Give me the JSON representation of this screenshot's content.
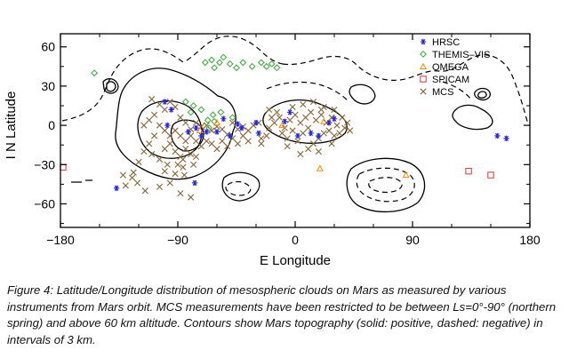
{
  "chart_data": {
    "type": "scatter",
    "title": "",
    "xlabel": "E Longitude",
    "ylabel": "I N Latitude",
    "xlim": [
      -180,
      180
    ],
    "ylim": [
      -78,
      70
    ],
    "xticks": [
      "−180",
      "−90",
      "0",
      "90",
      "180"
    ],
    "yticks": [
      "60",
      "30",
      "0",
      "−30",
      "−60"
    ],
    "xtick_values": [
      -180,
      -90,
      0,
      90,
      180
    ],
    "ytick_values": [
      60,
      30,
      0,
      -30,
      -60
    ],
    "grid": false,
    "legend_position": "top-right",
    "series": [
      {
        "name": "HRSC",
        "marker": "asterisk",
        "color": "#2222ee",
        "points": [
          [
            -137,
            -48
          ],
          [
            -100,
            18
          ],
          [
            -95,
            12
          ],
          [
            -98,
            0
          ],
          [
            -82,
            -5
          ],
          [
            -76,
            -2
          ],
          [
            -72,
            -8
          ],
          [
            -60,
            -5
          ],
          [
            -55,
            5
          ],
          [
            -50,
            -8
          ],
          [
            -44,
            1
          ],
          [
            -41,
            -2
          ],
          [
            -30,
            2
          ],
          [
            -8,
            3
          ],
          [
            -4,
            10
          ],
          [
            2,
            -8
          ],
          [
            12,
            -6
          ],
          [
            18,
            -8
          ],
          [
            26,
            2
          ],
          [
            30,
            5
          ],
          [
            155,
            -8
          ],
          [
            162,
            -10
          ],
          [
            -77,
            -44
          ],
          [
            -68,
            -5
          ],
          [
            -28,
            -6
          ]
        ]
      },
      {
        "name": "THEMIS–VIS",
        "marker": "diamond",
        "color": "#33aa33",
        "points": [
          [
            -154,
            40
          ],
          [
            -69,
            48
          ],
          [
            -64,
            50
          ],
          [
            -62,
            44
          ],
          [
            -58,
            48
          ],
          [
            -55,
            52
          ],
          [
            -50,
            47
          ],
          [
            -45,
            44
          ],
          [
            -40,
            48
          ],
          [
            -33,
            45
          ],
          [
            -26,
            48
          ],
          [
            -22,
            45
          ],
          [
            -18,
            47
          ],
          [
            -14,
            44
          ],
          [
            -84,
            18
          ],
          [
            -80,
            10
          ],
          [
            -78,
            15
          ],
          [
            -72,
            12
          ],
          [
            -67,
            4
          ],
          [
            -63,
            8
          ],
          [
            -57,
            10
          ],
          [
            -62,
            3
          ],
          [
            -66,
            -2
          ],
          [
            -48,
            6
          ]
        ]
      },
      {
        "name": "OMEGA",
        "marker": "triangle",
        "color": "#ff8800",
        "points": [
          [
            19,
            -33
          ],
          [
            85,
            -38
          ],
          [
            -73,
            -4
          ],
          [
            -60,
            2
          ],
          [
            22,
            3
          ],
          [
            -10,
            0
          ]
        ]
      },
      {
        "name": "SPICAM",
        "marker": "square",
        "color": "#dd3333",
        "points": [
          [
            -178,
            -32
          ],
          [
            133,
            -35
          ],
          [
            150,
            -38
          ]
        ]
      },
      {
        "name": "MCS",
        "marker": "cross",
        "color": "#886633",
        "points": [
          [
            -125,
            -40
          ],
          [
            -115,
            -50
          ],
          [
            -100,
            -35
          ],
          [
            -92,
            -37
          ],
          [
            -85,
            -38
          ],
          [
            -80,
            -55
          ],
          [
            -88,
            -52
          ],
          [
            -121,
            -44
          ],
          [
            -130,
            -46
          ],
          [
            -104,
            -47
          ],
          [
            -96,
            -44
          ],
          [
            -110,
            20
          ],
          [
            -104,
            16
          ],
          [
            -100,
            12
          ],
          [
            -96,
            18
          ],
          [
            -92,
            14
          ],
          [
            -88,
            6
          ],
          [
            -84,
            2
          ],
          [
            -80,
            -3
          ],
          [
            -76,
            2
          ],
          [
            -72,
            -1
          ],
          [
            -68,
            0
          ],
          [
            -64,
            -4
          ],
          [
            -60,
            -1
          ],
          [
            -56,
            -3
          ],
          [
            -52,
            -7
          ],
          [
            -48,
            2
          ],
          [
            -44,
            -3
          ],
          [
            -40,
            -1
          ],
          [
            -36,
            -4
          ],
          [
            -32,
            0
          ],
          [
            -28,
            2
          ],
          [
            -108,
            8
          ],
          [
            -112,
            4
          ],
          [
            -116,
            0
          ],
          [
            -104,
            0
          ],
          [
            -100,
            -4
          ],
          [
            -96,
            -8
          ],
          [
            -92,
            -4
          ],
          [
            -88,
            -8
          ],
          [
            -84,
            -12
          ],
          [
            -80,
            -8
          ],
          [
            -76,
            -12
          ],
          [
            -72,
            -16
          ],
          [
            -68,
            -12
          ],
          [
            -64,
            -14
          ],
          [
            -108,
            -8
          ],
          [
            -112,
            -14
          ],
          [
            -100,
            -18
          ],
          [
            -96,
            -14
          ],
          [
            -92,
            -20
          ],
          [
            -88,
            -24
          ],
          [
            -84,
            -18
          ],
          [
            -80,
            -22
          ],
          [
            -76,
            -24
          ],
          [
            -104,
            -26
          ],
          [
            -98,
            -30
          ],
          [
            -90,
            -30
          ],
          [
            -86,
            -32
          ],
          [
            -116,
            -20
          ],
          [
            -120,
            -28
          ],
          [
            -110,
            -22
          ],
          [
            -60,
            -18
          ],
          [
            -56,
            -12
          ],
          [
            -52,
            -16
          ],
          [
            -48,
            -10
          ],
          [
            -44,
            -14
          ],
          [
            -40,
            -8
          ],
          [
            -36,
            -12
          ],
          [
            -20,
            -2
          ],
          [
            -16,
            2
          ],
          [
            -12,
            6
          ],
          [
            -8,
            -2
          ],
          [
            -4,
            4
          ],
          [
            0,
            8
          ],
          [
            4,
            2
          ],
          [
            8,
            6
          ],
          [
            12,
            10
          ],
          [
            16,
            4
          ],
          [
            20,
            8
          ],
          [
            24,
            2
          ],
          [
            28,
            6
          ],
          [
            32,
            0
          ],
          [
            -10,
            -6
          ],
          [
            -6,
            -10
          ],
          [
            -2,
            -4
          ],
          [
            2,
            -12
          ],
          [
            6,
            -6
          ],
          [
            10,
            -2
          ],
          [
            14,
            -14
          ],
          [
            18,
            -10
          ],
          [
            22,
            -6
          ],
          [
            26,
            -4
          ],
          [
            30,
            -8
          ],
          [
            -14,
            10
          ],
          [
            -18,
            6
          ],
          [
            -2,
            14
          ],
          [
            6,
            16
          ],
          [
            14,
            18
          ],
          [
            22,
            14
          ],
          [
            30,
            12
          ],
          [
            36,
            6
          ],
          [
            40,
            2
          ],
          [
            10,
            -18
          ],
          [
            18,
            -20
          ],
          [
            4,
            -22
          ],
          [
            -6,
            -16
          ],
          [
            34,
            -6
          ],
          [
            38,
            -2
          ],
          [
            -22,
            -8
          ],
          [
            -26,
            -10
          ],
          [
            20,
            12
          ],
          [
            -124,
            -36
          ],
          [
            -132,
            -38
          ],
          [
            -26,
            -14
          ],
          [
            28,
            -14
          ],
          [
            42,
            -4
          ],
          [
            -20,
            12
          ],
          [
            -86,
            -26
          ],
          [
            -78,
            -30
          ]
        ]
      }
    ]
  },
  "caption": {
    "lines": [
      "Figure 4: Latitude/Longitude distribution of mesospheric clouds on Mars as measured by various",
      "instruments from Mars orbit. MCS measurements have been restricted to be between Ls=0°-90° (northern",
      "spring) and above 60 km altitude. Contours show Mars topography (solid: positive, dashed: negative) in",
      "intervals of 3 km."
    ]
  }
}
